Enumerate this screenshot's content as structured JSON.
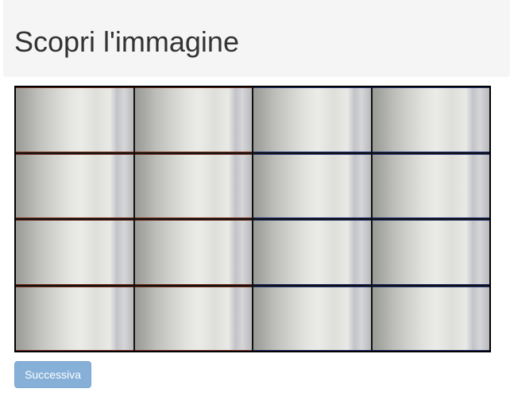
{
  "header": {
    "title": "Scopri l'immagine"
  },
  "board": {
    "rows": 4,
    "columns": 4,
    "tile_state": "covered"
  },
  "actions": {
    "next_label": "Successiva",
    "next_disabled": true
  },
  "colors": {
    "header_bg": "#f5f5f5",
    "button_bg": "#79a8d4",
    "grid_line": "#000000"
  }
}
